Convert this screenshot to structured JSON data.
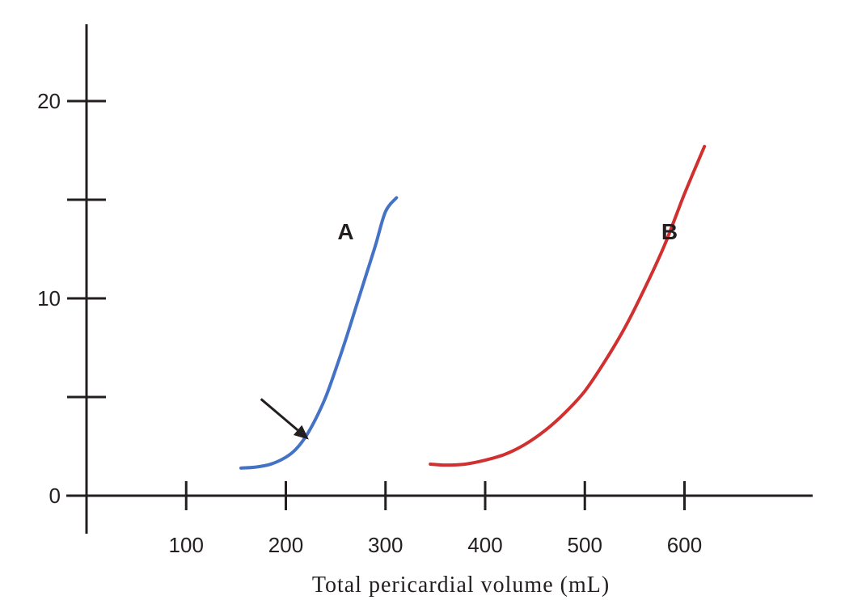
{
  "chart_data": {
    "type": "line",
    "title": "",
    "xlabel": "Total pericardial volume  (mL)",
    "ylabel": "",
    "xlim": [
      -10,
      620
    ],
    "ylim": [
      0,
      24
    ],
    "x_ticks": [
      {
        "value": 100,
        "label": "100"
      },
      {
        "value": 200,
        "label": "200"
      },
      {
        "value": 300,
        "label": "300"
      },
      {
        "value": 400,
        "label": "400"
      },
      {
        "value": 500,
        "label": "500"
      },
      {
        "value": 600,
        "label": "600"
      }
    ],
    "y_ticks": [
      {
        "value": 0,
        "label": "0"
      },
      {
        "value": 5,
        "label": ""
      },
      {
        "value": 10,
        "label": "10"
      },
      {
        "value": 15,
        "label": ""
      },
      {
        "value": 20,
        "label": "20"
      }
    ],
    "grid": false,
    "series": [
      {
        "name": "A",
        "color": "#4472c4",
        "label_at": [
          260,
          13
        ],
        "points": [
          [
            155,
            1.4
          ],
          [
            170,
            1.45
          ],
          [
            185,
            1.6
          ],
          [
            200,
            1.95
          ],
          [
            210,
            2.35
          ],
          [
            220,
            3.0
          ],
          [
            230,
            3.9
          ],
          [
            240,
            5.0
          ],
          [
            250,
            6.4
          ],
          [
            260,
            7.9
          ],
          [
            270,
            9.5
          ],
          [
            280,
            11.1
          ],
          [
            290,
            12.7
          ],
          [
            300,
            14.4
          ],
          [
            311,
            15.1
          ]
        ]
      },
      {
        "name": "B",
        "color": "#d03030",
        "label_at": [
          585,
          13
        ],
        "points": [
          [
            345,
            1.6
          ],
          [
            360,
            1.55
          ],
          [
            380,
            1.6
          ],
          [
            400,
            1.8
          ],
          [
            420,
            2.1
          ],
          [
            440,
            2.6
          ],
          [
            460,
            3.3
          ],
          [
            480,
            4.2
          ],
          [
            500,
            5.3
          ],
          [
            520,
            6.8
          ],
          [
            540,
            8.5
          ],
          [
            560,
            10.5
          ],
          [
            580,
            12.7
          ],
          [
            600,
            15.3
          ],
          [
            620,
            17.7
          ]
        ]
      }
    ],
    "annotations": [
      {
        "type": "arrow",
        "target_series": "A",
        "target": [
          223,
          2.85
        ],
        "from": [
          175,
          4.9
        ]
      }
    ]
  }
}
